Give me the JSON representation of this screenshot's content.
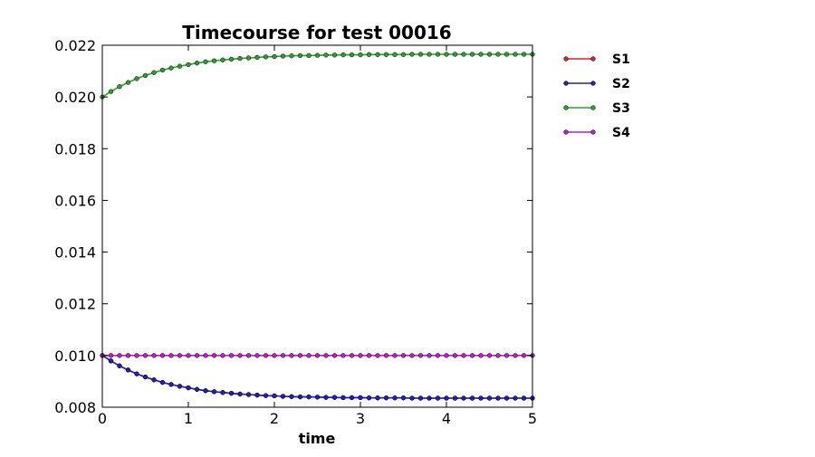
{
  "chart_data": {
    "type": "line",
    "title": "Timecourse for test 00016",
    "xlabel": "time",
    "ylabel": "",
    "xlim": [
      0,
      5
    ],
    "ylim": [
      0.008,
      0.022
    ],
    "x_ticks": [
      "0",
      "1",
      "2",
      "3",
      "4",
      "5"
    ],
    "y_ticks": [
      "0.008",
      "0.010",
      "0.012",
      "0.014",
      "0.016",
      "0.018",
      "0.020",
      "0.022"
    ],
    "grid": false,
    "legend_position": "outside-right",
    "x": [
      0.0,
      0.1,
      0.2,
      0.3,
      0.4,
      0.5,
      0.6,
      0.7,
      0.8,
      0.9,
      1.0,
      1.1,
      1.2,
      1.3,
      1.4,
      1.5,
      1.6,
      1.7,
      1.8,
      1.9,
      2.0,
      2.1,
      2.2,
      2.3,
      2.4,
      2.5,
      2.6,
      2.7,
      2.8,
      2.9,
      3.0,
      3.1,
      3.2,
      3.3,
      3.4,
      3.5,
      3.6,
      3.7,
      3.8,
      3.9,
      4.0,
      4.1,
      4.2,
      4.3,
      4.4,
      4.5,
      4.6,
      4.7,
      4.8,
      4.9,
      5.0
    ],
    "series": [
      {
        "name": "S1",
        "color": "#d62728",
        "values": [
          0.01,
          0.00979,
          0.0096,
          0.00944,
          0.00929,
          0.00917,
          0.00906,
          0.00896,
          0.00888,
          0.00881,
          0.00875,
          0.00869,
          0.00864,
          0.0086,
          0.00857,
          0.00854,
          0.00851,
          0.00849,
          0.00847,
          0.00845,
          0.00844,
          0.00842,
          0.00841,
          0.0084,
          0.0084,
          0.00839,
          0.00838,
          0.00838,
          0.00837,
          0.00837,
          0.00837,
          0.00836,
          0.00836,
          0.00836,
          0.00836,
          0.00836,
          0.00835,
          0.00835,
          0.00835,
          0.00835,
          0.00835,
          0.00835,
          0.00835,
          0.00835,
          0.00835,
          0.00835,
          0.00835,
          0.00835,
          0.00835,
          0.00835,
          0.00835
        ]
      },
      {
        "name": "S2",
        "color": "#1f1fbf",
        "values": [
          0.01,
          0.00979,
          0.0096,
          0.00944,
          0.00929,
          0.00917,
          0.00906,
          0.00896,
          0.00888,
          0.00881,
          0.00875,
          0.00869,
          0.00864,
          0.0086,
          0.00857,
          0.00854,
          0.00851,
          0.00849,
          0.00847,
          0.00845,
          0.00844,
          0.00842,
          0.00841,
          0.0084,
          0.0084,
          0.00839,
          0.00838,
          0.00838,
          0.00837,
          0.00837,
          0.00837,
          0.00836,
          0.00836,
          0.00836,
          0.00836,
          0.00836,
          0.00835,
          0.00835,
          0.00835,
          0.00835,
          0.00835,
          0.00835,
          0.00835,
          0.00835,
          0.00835,
          0.00835,
          0.00835,
          0.00835,
          0.00835,
          0.00835,
          0.00835
        ]
      },
      {
        "name": "S3",
        "color": "#2ca02c",
        "values": [
          0.02,
          0.02021,
          0.0204,
          0.02056,
          0.02071,
          0.02083,
          0.02094,
          0.02104,
          0.02112,
          0.02119,
          0.02125,
          0.02131,
          0.02136,
          0.0214,
          0.02143,
          0.02146,
          0.02149,
          0.02151,
          0.02153,
          0.02155,
          0.02156,
          0.02158,
          0.02159,
          0.0216,
          0.0216,
          0.02161,
          0.02162,
          0.02162,
          0.02163,
          0.02163,
          0.02163,
          0.02164,
          0.02164,
          0.02164,
          0.02164,
          0.02164,
          0.02165,
          0.02165,
          0.02165,
          0.02165,
          0.02165,
          0.02165,
          0.02165,
          0.02165,
          0.02165,
          0.02165,
          0.02165,
          0.02165,
          0.02165,
          0.02165,
          0.02165
        ]
      },
      {
        "name": "S4",
        "color": "#bf1fbf",
        "values": [
          0.01,
          0.01,
          0.01,
          0.01,
          0.01,
          0.01,
          0.01,
          0.01,
          0.01,
          0.01,
          0.01,
          0.01,
          0.01,
          0.01,
          0.01,
          0.01,
          0.01,
          0.01,
          0.01,
          0.01,
          0.01,
          0.01,
          0.01,
          0.01,
          0.01,
          0.01,
          0.01,
          0.01,
          0.01,
          0.01,
          0.01,
          0.01,
          0.01,
          0.01,
          0.01,
          0.01,
          0.01,
          0.01,
          0.01,
          0.01,
          0.01,
          0.01,
          0.01,
          0.01,
          0.01,
          0.01,
          0.01,
          0.01,
          0.01,
          0.01,
          0.01
        ]
      }
    ]
  }
}
